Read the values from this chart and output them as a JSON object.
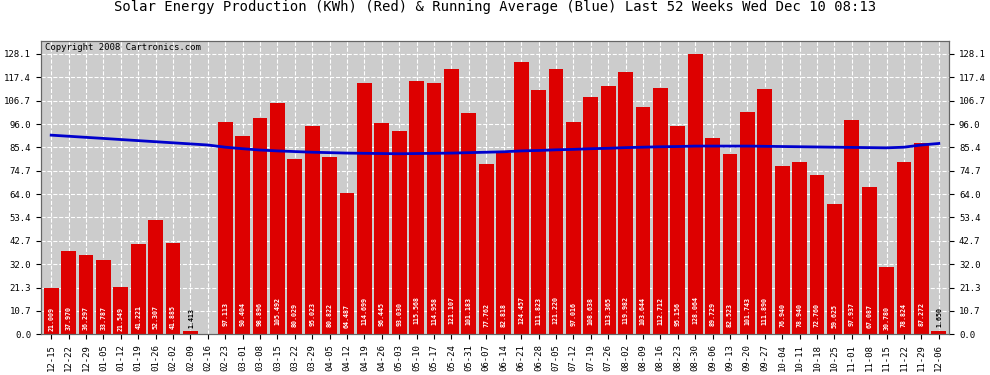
{
  "title": "Solar Energy Production (KWh) (Red) & Running Average (Blue) Last 52 Weeks Wed Dec 10 08:13",
  "copyright": "Copyright 2008 Cartronics.com",
  "bar_color": "#dd0000",
  "line_color": "#0000cc",
  "background_color": "#ffffff",
  "plot_bg_color": "#cccccc",
  "grid_color": "#ffffff",
  "categories": [
    "12-15",
    "12-22",
    "12-29",
    "01-05",
    "01-12",
    "01-19",
    "01-26",
    "02-02",
    "02-09",
    "02-16",
    "02-23",
    "03-01",
    "03-08",
    "03-15",
    "03-22",
    "03-29",
    "04-05",
    "04-12",
    "04-19",
    "04-26",
    "05-03",
    "05-10",
    "05-17",
    "05-24",
    "05-31",
    "06-07",
    "06-14",
    "06-21",
    "06-28",
    "07-05",
    "07-12",
    "07-19",
    "07-26",
    "08-02",
    "08-09",
    "08-16",
    "08-23",
    "08-30",
    "09-06",
    "09-13",
    "09-20",
    "09-27",
    "10-04",
    "10-11",
    "10-18",
    "10-25",
    "11-01",
    "11-08",
    "11-15",
    "11-22",
    "11-29",
    "12-06"
  ],
  "values": [
    21.009,
    37.97,
    36.297,
    33.787,
    21.549,
    41.221,
    52.307,
    41.885,
    1.413,
    0.0,
    97.113,
    90.404,
    98.896,
    105.492,
    80.029,
    95.023,
    80.822,
    64.487,
    114.699,
    96.445,
    93.03,
    115.568,
    114.958,
    121.107,
    101.183,
    77.762,
    82.818,
    124.457,
    111.823,
    121.22,
    97.016,
    108.638,
    113.365,
    119.982,
    103.644,
    112.712,
    95.156,
    128.064,
    89.729,
    82.523,
    101.743,
    111.89,
    76.94,
    78.94,
    72.76,
    59.625,
    97.937,
    67.087,
    30.78,
    78.824,
    87.272,
    1.65
  ],
  "running_avg": [
    91.0,
    90.5,
    90.0,
    89.5,
    89.0,
    88.5,
    88.0,
    87.5,
    87.0,
    86.5,
    85.5,
    84.8,
    84.2,
    83.8,
    83.5,
    83.2,
    83.0,
    82.8,
    82.7,
    82.6,
    82.5,
    82.6,
    82.7,
    82.8,
    83.0,
    83.2,
    83.4,
    83.8,
    84.0,
    84.3,
    84.5,
    84.8,
    85.0,
    85.3,
    85.5,
    85.7,
    85.8,
    86.0,
    86.0,
    86.0,
    86.0,
    85.9,
    85.8,
    85.7,
    85.6,
    85.5,
    85.4,
    85.3,
    85.2,
    85.5,
    86.5,
    87.2
  ],
  "yticks": [
    0.0,
    10.7,
    21.3,
    32.0,
    42.7,
    53.4,
    64.0,
    74.7,
    85.4,
    96.0,
    106.7,
    117.4,
    128.1
  ],
  "ylim": [
    0,
    134
  ],
  "title_fontsize": 10,
  "copyright_fontsize": 6.5,
  "bar_label_fontsize": 4.8,
  "tick_fontsize": 6.5
}
